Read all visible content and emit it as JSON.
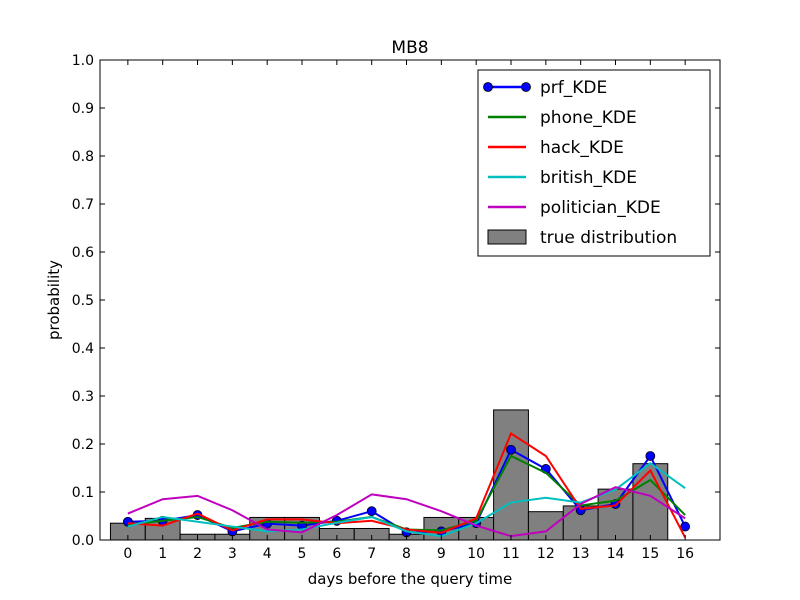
{
  "chart_data": {
    "type": "line",
    "title": "MB8",
    "xlabel": "days before the query time",
    "ylabel": "probability",
    "xlim": [
      -0.8,
      17
    ],
    "ylim": [
      0,
      1.0
    ],
    "yticks": [
      "0.0",
      "0.1",
      "0.2",
      "0.3",
      "0.4",
      "0.5",
      "0.6",
      "0.7",
      "0.8",
      "0.9",
      "1.0"
    ],
    "x": [
      0,
      1,
      2,
      3,
      4,
      5,
      6,
      7,
      8,
      9,
      10,
      11,
      12,
      13,
      14,
      15,
      16
    ],
    "legend_position": "top-right",
    "grid": false,
    "true_distribution": {
      "name": "true distribution",
      "color": "#808080",
      "values": [
        0.035,
        0.045,
        0.012,
        0.012,
        0.047,
        0.047,
        0.024,
        0.024,
        0.012,
        0.047,
        0.047,
        0.271,
        0.059,
        0.071,
        0.106,
        0.159,
        0.0
      ]
    },
    "series": [
      {
        "name": "prf_KDE",
        "color": "#0000ff",
        "marker": true,
        "values": [
          0.038,
          0.04,
          0.052,
          0.018,
          0.034,
          0.03,
          0.04,
          0.06,
          0.016,
          0.018,
          0.035,
          0.188,
          0.148,
          0.062,
          0.075,
          0.175,
          0.028
        ]
      },
      {
        "name": "phone_KDE",
        "color": "#008000",
        "marker": false,
        "values": [
          0.032,
          0.04,
          0.048,
          0.025,
          0.038,
          0.036,
          0.038,
          0.048,
          0.022,
          0.02,
          0.04,
          0.175,
          0.14,
          0.072,
          0.082,
          0.125,
          0.052
        ]
      },
      {
        "name": "hack_KDE",
        "color": "#ff0000",
        "marker": false,
        "values": [
          0.035,
          0.03,
          0.055,
          0.02,
          0.043,
          0.043,
          0.035,
          0.04,
          0.022,
          0.015,
          0.045,
          0.222,
          0.175,
          0.065,
          0.072,
          0.145,
          0.005
        ]
      },
      {
        "name": "british_KDE",
        "color": "#00bfbf",
        "marker": false,
        "values": [
          0.028,
          0.048,
          0.038,
          0.028,
          0.018,
          0.022,
          0.036,
          0.048,
          0.018,
          0.008,
          0.035,
          0.078,
          0.088,
          0.078,
          0.105,
          0.16,
          0.108
        ]
      },
      {
        "name": "politician_KDE",
        "color": "#bf00bf",
        "marker": false,
        "values": [
          0.055,
          0.085,
          0.092,
          0.062,
          0.022,
          0.016,
          0.052,
          0.095,
          0.085,
          0.06,
          0.03,
          0.008,
          0.018,
          0.075,
          0.11,
          0.092,
          0.045
        ]
      }
    ]
  }
}
